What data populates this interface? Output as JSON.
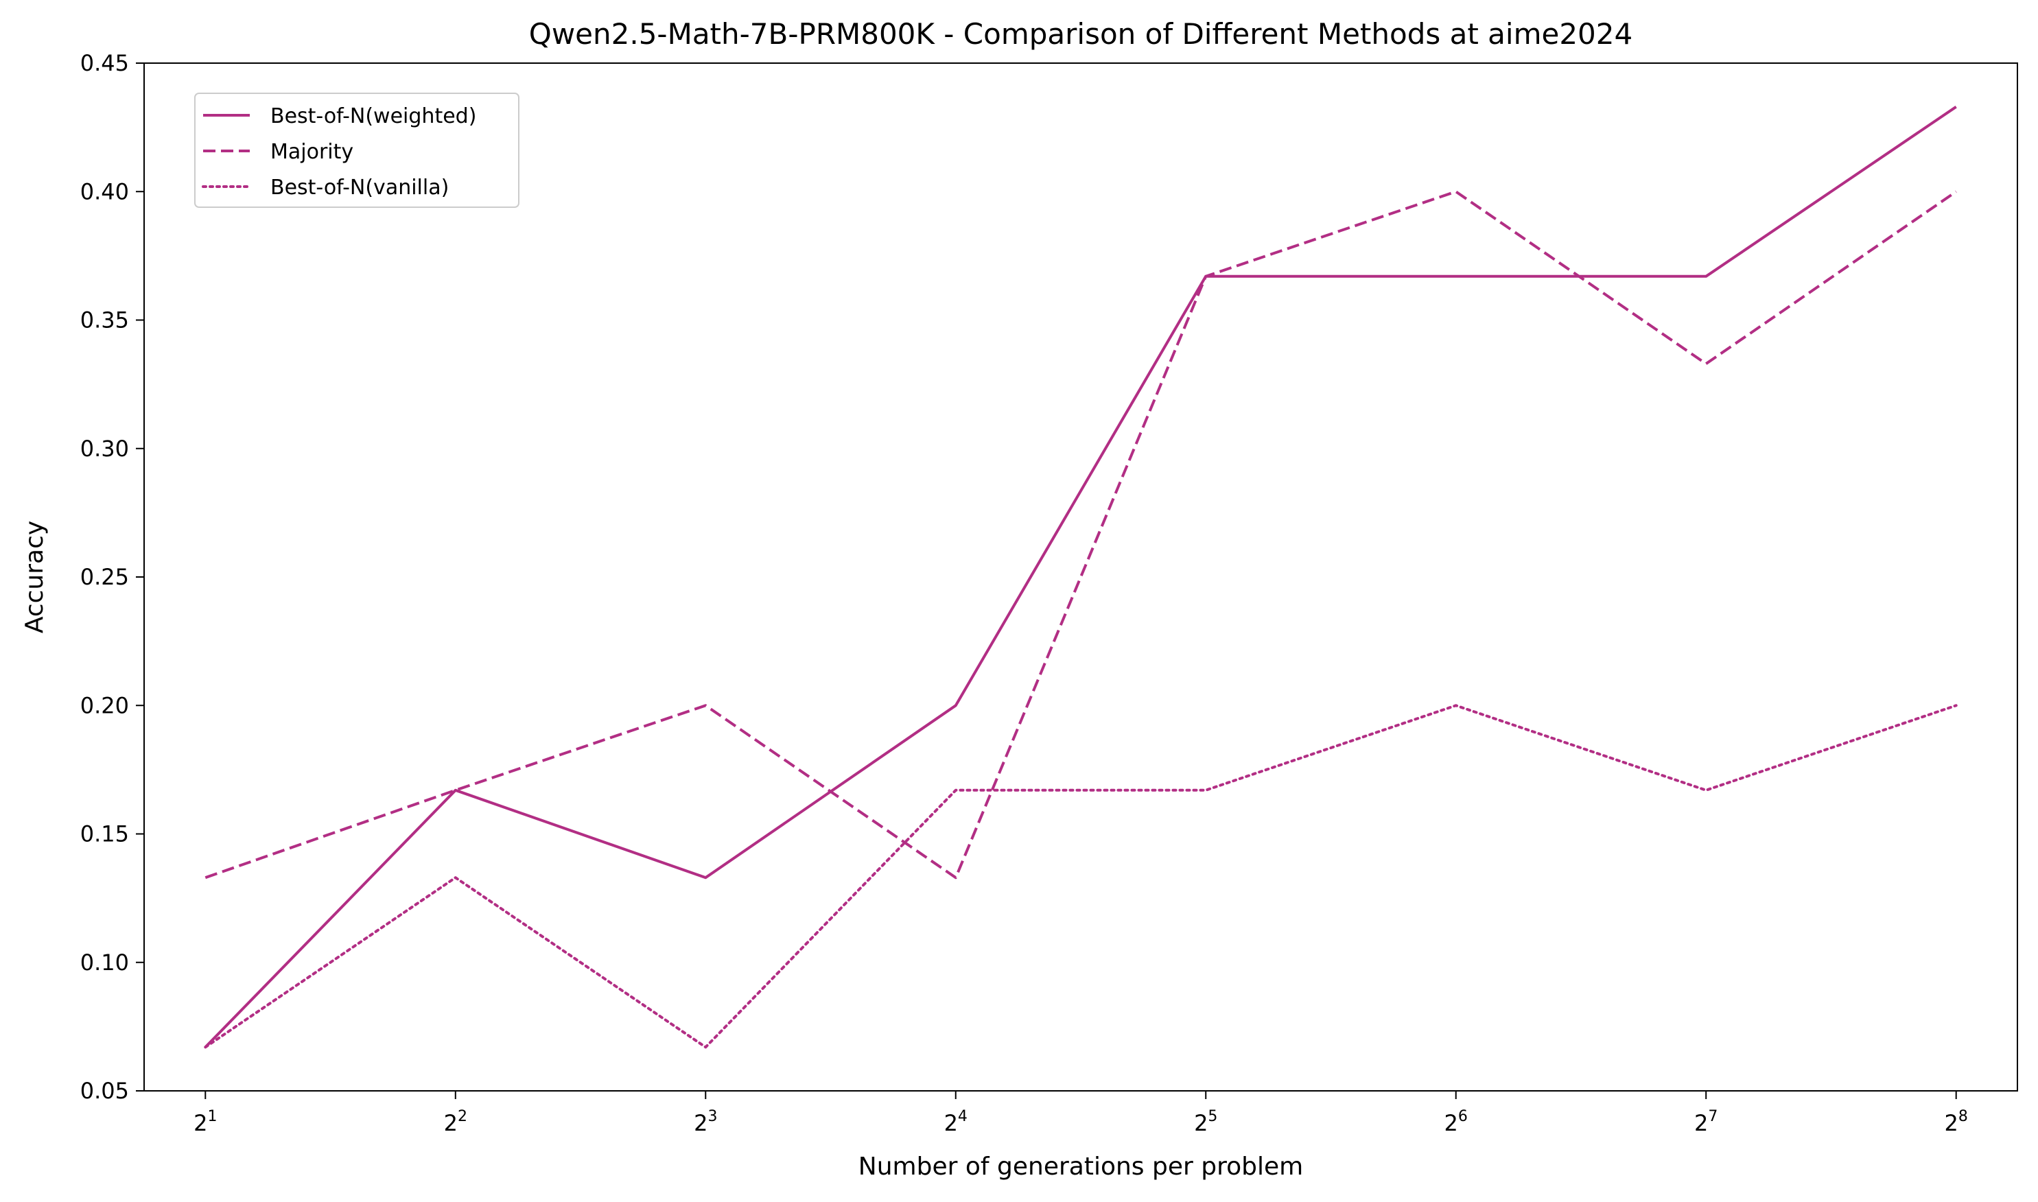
{
  "chart_data": {
    "type": "line",
    "title": "Qwen2.5-Math-7B-PRM800K - Comparison of Different Methods at aime2024",
    "xlabel": "Number of generations per problem",
    "ylabel": "Accuracy",
    "x_scale": "log2",
    "x": [
      2,
      4,
      8,
      16,
      32,
      64,
      128,
      256
    ],
    "x_tick_labels": [
      {
        "base": "2",
        "exp": "1"
      },
      {
        "base": "2",
        "exp": "2"
      },
      {
        "base": "2",
        "exp": "3"
      },
      {
        "base": "2",
        "exp": "4"
      },
      {
        "base": "2",
        "exp": "5"
      },
      {
        "base": "2",
        "exp": "6"
      },
      {
        "base": "2",
        "exp": "7"
      },
      {
        "base": "2",
        "exp": "8"
      }
    ],
    "ylim": [
      0.05,
      0.45
    ],
    "y_ticks": [
      0.05,
      0.1,
      0.15,
      0.2,
      0.25,
      0.3,
      0.35,
      0.4,
      0.45
    ],
    "y_tick_labels": [
      "0.05",
      "0.10",
      "0.15",
      "0.20",
      "0.25",
      "0.30",
      "0.35",
      "0.40",
      "0.45"
    ],
    "grid": false,
    "legend_position": "top-left",
    "series": [
      {
        "name": "Best-of-N(weighted)",
        "line_style": "solid",
        "color": "#b22e84",
        "values": [
          0.067,
          0.167,
          0.133,
          0.2,
          0.367,
          0.367,
          0.367,
          0.433
        ]
      },
      {
        "name": "Majority",
        "line_style": "dashed",
        "color": "#b22e84",
        "values": [
          0.133,
          0.167,
          0.2,
          0.133,
          0.367,
          0.4,
          0.333,
          0.4
        ]
      },
      {
        "name": "Best-of-N(vanilla)",
        "line_style": "dotted",
        "color": "#b22e84",
        "values": [
          0.067,
          0.133,
          0.067,
          0.167,
          0.167,
          0.2,
          0.167,
          0.2
        ]
      }
    ]
  }
}
